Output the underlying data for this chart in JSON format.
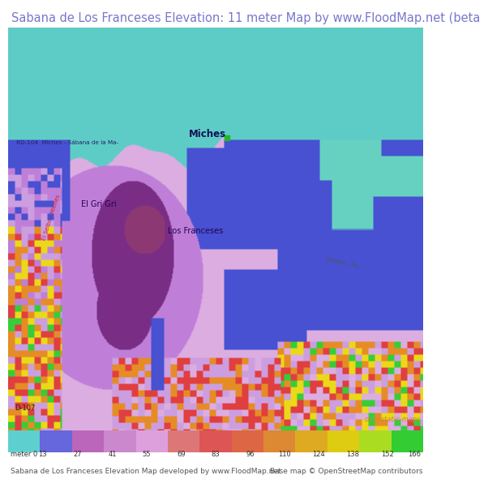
{
  "title": "Sabana de Los Franceses Elevation: 11 meter Map by www.FloodMap.net (beta",
  "title_color": "#7777cc",
  "title_fontsize": 10.5,
  "colorbar_labels": [
    "meter 0",
    "13",
    "27",
    "41",
    "55",
    "69",
    "83",
    "96",
    "110",
    "124",
    "138",
    "152",
    "166"
  ],
  "colorbar_values": [
    0,
    13,
    27,
    41,
    55,
    69,
    83,
    96,
    110,
    124,
    138,
    152,
    166
  ],
  "colorbar_colors": [
    "#5ecfcf",
    "#6666dd",
    "#bb66bb",
    "#cc88cc",
    "#dda0dd",
    "#dd7777",
    "#dd5555",
    "#dd6644",
    "#dd8833",
    "#ddaa22",
    "#ddcc11",
    "#aadd22",
    "#33cc33"
  ],
  "footer_left": "Sabana de Los Franceses Elevation Map developed by www.FloodMap.net",
  "footer_right": "Base map © OpenStreetMap contributors",
  "footer_color": "#555555",
  "footer_fontsize": 6.5,
  "osm_label": "osm-static-maps",
  "osm_color": "#cc8833"
}
